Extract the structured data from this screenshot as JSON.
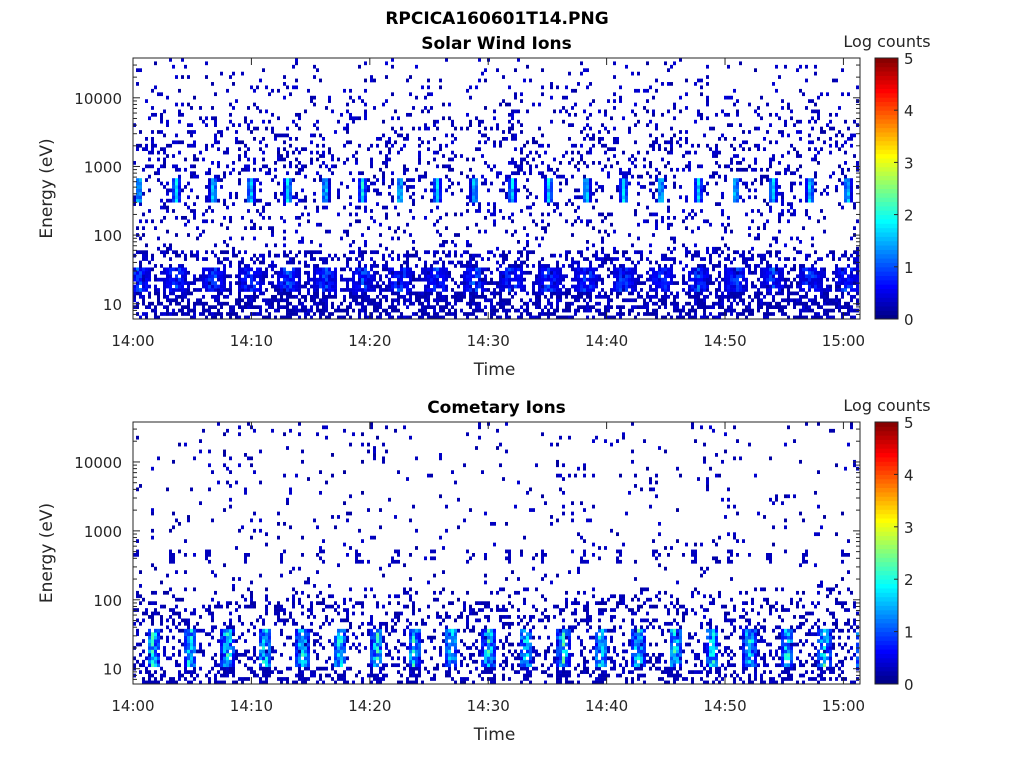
{
  "figure_title": "RPCICA160601T14.PNG",
  "colormap": [
    "#00008f",
    "#0000ff",
    "#00ffff",
    "#ffff00",
    "#ff0000",
    "#800000"
  ],
  "chart_data": [
    {
      "type": "heatmap",
      "title": "Solar Wind Ions",
      "xlabel": "Time",
      "ylabel": "Energy (eV)",
      "x_unit": "minutes after 14:00",
      "xlim": [
        0,
        61.4
      ],
      "ylim": [
        6,
        38000
      ],
      "yscale": "log",
      "xticks": [
        0,
        10,
        20,
        30,
        40,
        50,
        60
      ],
      "xtick_labels": [
        "14:00",
        "14:10",
        "14:20",
        "14:30",
        "14:40",
        "14:50",
        "15:00"
      ],
      "yticks": [
        10,
        100,
        1000,
        10000
      ],
      "ytick_labels": [
        "10",
        "100",
        "1000",
        "10000"
      ],
      "colorbar": {
        "label": "Log counts",
        "range": [
          0,
          5
        ],
        "ticks": [
          "0",
          "1",
          "2",
          "3",
          "4",
          "5"
        ]
      },
      "pulse_period_min": 3.15,
      "pulse_first_min": 0.5,
      "features": [
        {
          "name": "solar wind beam",
          "energy_eV": 450,
          "peak_log_counts": 2.2
        },
        {
          "name": "low energy band",
          "energy_eV": 25,
          "peak_log_counts": 1.3
        },
        {
          "name": "background",
          "energy_range_eV": [
            6,
            38000
          ],
          "log_counts": 0.2,
          "density": 0.22
        }
      ]
    },
    {
      "type": "heatmap",
      "title": "Cometary Ions",
      "xlabel": "Time",
      "ylabel": "Energy (eV)",
      "x_unit": "minutes after 14:00",
      "xlim": [
        0,
        61.4
      ],
      "ylim": [
        6,
        38000
      ],
      "yscale": "log",
      "xticks": [
        0,
        10,
        20,
        30,
        40,
        50,
        60
      ],
      "xtick_labels": [
        "14:00",
        "14:10",
        "14:20",
        "14:30",
        "14:40",
        "14:50",
        "15:00"
      ],
      "yticks": [
        10,
        100,
        1000,
        10000
      ],
      "ytick_labels": [
        "10",
        "100",
        "1000",
        "10000"
      ],
      "colorbar": {
        "label": "Log counts",
        "range": [
          0,
          5
        ],
        "ticks": [
          "0",
          "1",
          "2",
          "3",
          "4",
          "5"
        ]
      },
      "pulse_period_min": 3.15,
      "pulse_first_min": 1.7,
      "features": [
        {
          "name": "cometary ion band",
          "energy_eV": 22,
          "peak_log_counts": 2.5
        },
        {
          "name": "weak 450 eV patches",
          "energy_eV": 450,
          "peak_log_counts": 0.3
        },
        {
          "name": "background",
          "energy_range_eV": [
            6,
            38000
          ],
          "log_counts": 0.1,
          "density": 0.04
        }
      ]
    }
  ]
}
